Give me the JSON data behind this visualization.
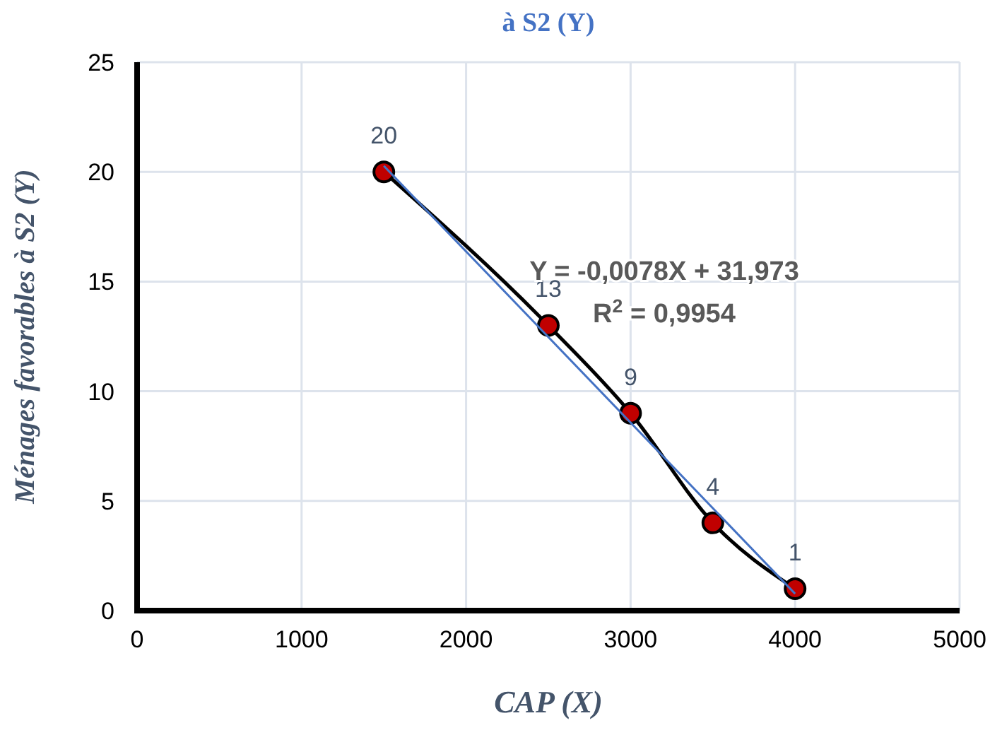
{
  "chart_data": {
    "type": "line",
    "title": "à S2 (Y)",
    "xlabel": "CAP (X)",
    "ylabel": "Ménages favorables à S2 (Y)",
    "x": [
      1500,
      2500,
      3000,
      3500,
      4000
    ],
    "series": [
      {
        "color": "#000000",
        "marker": "circle",
        "values": [
          20,
          13,
          9,
          4,
          1
        ],
        "data_labels": true
      },
      {
        "color": "#4472c4",
        "marker": "none",
        "x": [
          1500,
          4000
        ],
        "values": [
          20.27,
          0.77
        ]
      }
    ],
    "xlim": [
      0,
      5000
    ],
    "xticks": [
      0,
      1000,
      2000,
      3000,
      4000,
      5000
    ],
    "ylim": [
      0,
      25
    ],
    "yticks": [
      0,
      5,
      10,
      15,
      20,
      25
    ],
    "grid": true,
    "annotations": [
      "Y = -0,0078X + 31,973",
      "R$^{2}$ = 0,9954"
    ]
  }
}
